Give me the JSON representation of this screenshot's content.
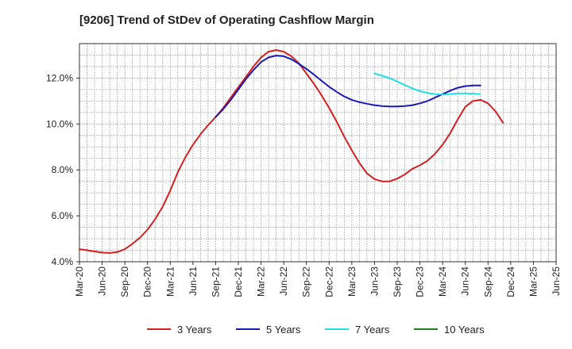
{
  "chart_data": {
    "type": "line",
    "title": "[9206]  Trend of StDev of Operating Cashflow Margin",
    "xlabel": "",
    "ylabel": "",
    "ylim": [
      4.0,
      13.5
    ],
    "y_ticks": [
      "4.0%",
      "6.0%",
      "8.0%",
      "10.0%",
      "12.0%"
    ],
    "y_tick_values": [
      4,
      6,
      8,
      10,
      12
    ],
    "x_ticks": [
      "Mar-20",
      "Jun-20",
      "Sep-20",
      "Dec-20",
      "Mar-21",
      "Jun-21",
      "Sep-21",
      "Dec-21",
      "Mar-22",
      "Jun-22",
      "Sep-22",
      "Dec-22",
      "Mar-23",
      "Jun-23",
      "Sep-23",
      "Dec-23",
      "Mar-24",
      "Jun-24",
      "Sep-24",
      "Dec-24",
      "Mar-25",
      "Jun-25"
    ],
    "grid": true,
    "legend_position": "bottom",
    "colors": {
      "3y": "#d62020",
      "5y": "#1a1ab8",
      "7y": "#20e0e8",
      "10y": "#208020"
    },
    "series": [
      {
        "name": "3 Years",
        "key": "3y",
        "x_index_start": 0,
        "values": [
          4.55,
          4.5,
          4.45,
          4.4,
          4.38,
          4.42,
          4.55,
          4.78,
          5.05,
          5.4,
          5.85,
          6.4,
          7.1,
          7.9,
          8.55,
          9.1,
          9.55,
          9.95,
          10.3,
          10.7,
          11.15,
          11.6,
          12.05,
          12.5,
          12.9,
          13.15,
          13.22,
          13.15,
          12.95,
          12.65,
          12.2,
          11.75,
          11.25,
          10.7,
          10.1,
          9.45,
          8.85,
          8.3,
          7.85,
          7.6,
          7.5,
          7.5,
          7.62,
          7.8,
          8.05,
          8.2,
          8.4,
          8.7,
          9.1,
          9.6,
          10.2,
          10.75,
          11.0,
          11.05,
          10.9,
          10.55,
          10.05
        ]
      },
      {
        "name": "5 Years",
        "key": "5y",
        "x_index_start": 18,
        "values": [
          10.3,
          10.65,
          11.05,
          11.5,
          11.95,
          12.35,
          12.7,
          12.9,
          12.98,
          12.95,
          12.82,
          12.62,
          12.4,
          12.15,
          11.88,
          11.62,
          11.4,
          11.2,
          11.05,
          10.95,
          10.88,
          10.82,
          10.78,
          10.76,
          10.76,
          10.78,
          10.82,
          10.9,
          11.0,
          11.15,
          11.3,
          11.45,
          11.58,
          11.65,
          11.68,
          11.68
        ]
      },
      {
        "name": "7 Years",
        "key": "7y",
        "x_index_start": 39,
        "values": [
          12.2,
          12.1,
          12.0,
          11.85,
          11.7,
          11.55,
          11.43,
          11.35,
          11.3,
          11.28,
          11.3,
          11.33,
          11.33,
          11.32,
          11.3
        ]
      },
      {
        "name": "10 Years",
        "key": "10y",
        "x_index_start": 0,
        "values": []
      }
    ]
  }
}
